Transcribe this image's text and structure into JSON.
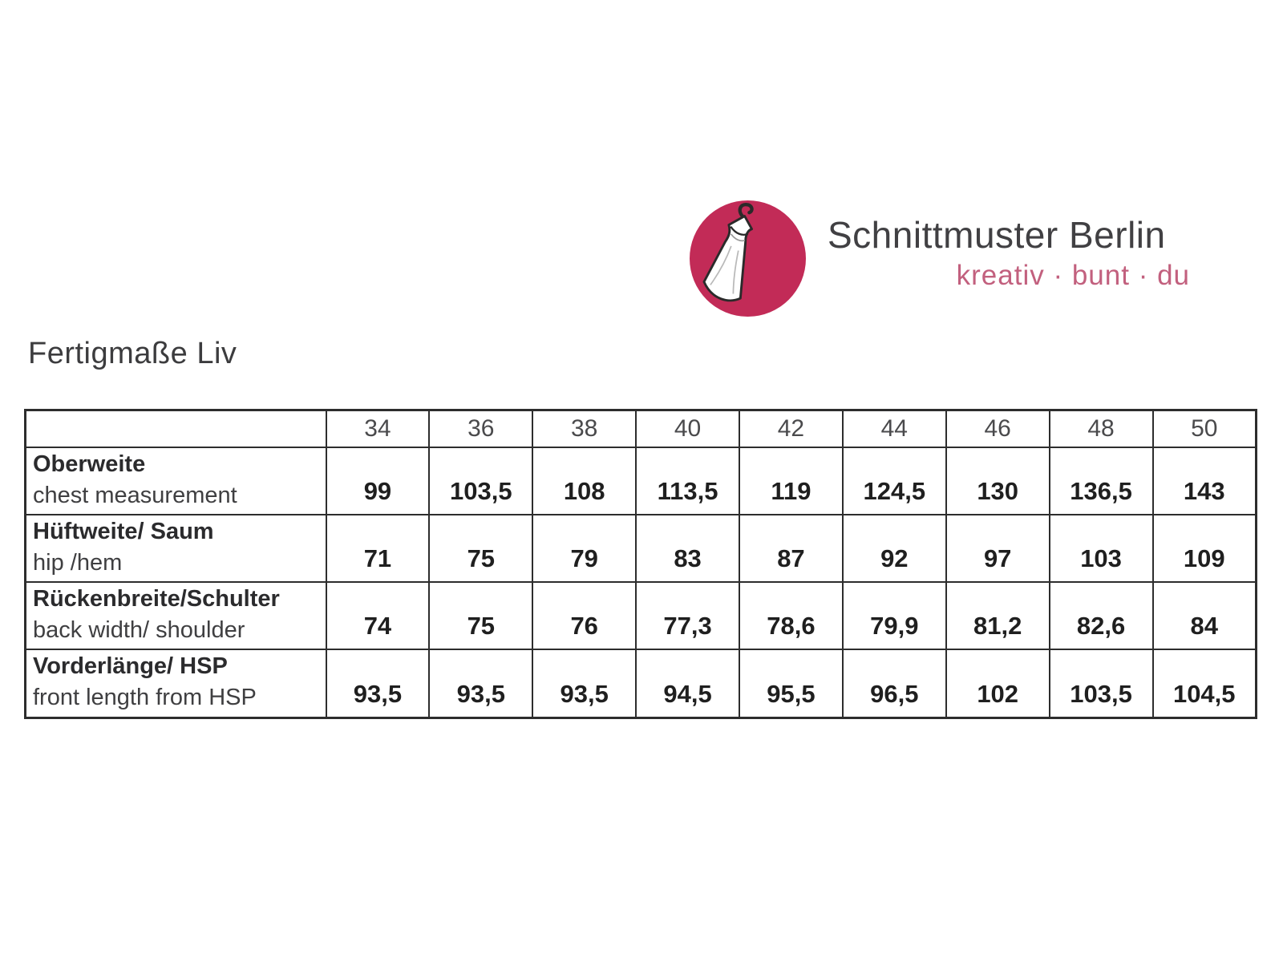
{
  "logo": {
    "brand": "Schnittmuster Berlin",
    "tagline": "kreativ · bunt · du",
    "circle_color": "#c22b57",
    "tagline_color": "#c2607e",
    "brand_text_color": "#414043",
    "icon": "dress-on-hanger-icon"
  },
  "page": {
    "title": "Fertigmaße Liv"
  },
  "table": {
    "corner_label": "",
    "sizes": [
      "34",
      "36",
      "38",
      "40",
      "42",
      "44",
      "46",
      "48",
      "50"
    ],
    "rows": [
      {
        "label_de": "Oberweite",
        "label_en": "chest measurement",
        "values": [
          "99",
          "103,5",
          "108",
          "113,5",
          "119",
          "124,5",
          "130",
          "136,5",
          "143"
        ]
      },
      {
        "label_de": "Hüftweite/ Saum",
        "label_en": "hip /hem",
        "values": [
          "71",
          "75",
          "79",
          "83",
          "87",
          "92",
          "97",
          "103",
          "109"
        ]
      },
      {
        "label_de": "Rückenbreite/Schulter",
        "label_en": "back width/ shoulder",
        "values": [
          "74",
          "75",
          "76",
          "77,3",
          "78,6",
          "79,9",
          "81,2",
          "82,6",
          "84"
        ]
      },
      {
        "label_de": "Vorderlänge/ HSP",
        "label_en": "front length from HSP",
        "values": [
          "93,5",
          "93,5",
          "93,5",
          "94,5",
          "95,5",
          "96,5",
          "102",
          "103,5",
          "104,5"
        ]
      }
    ]
  }
}
